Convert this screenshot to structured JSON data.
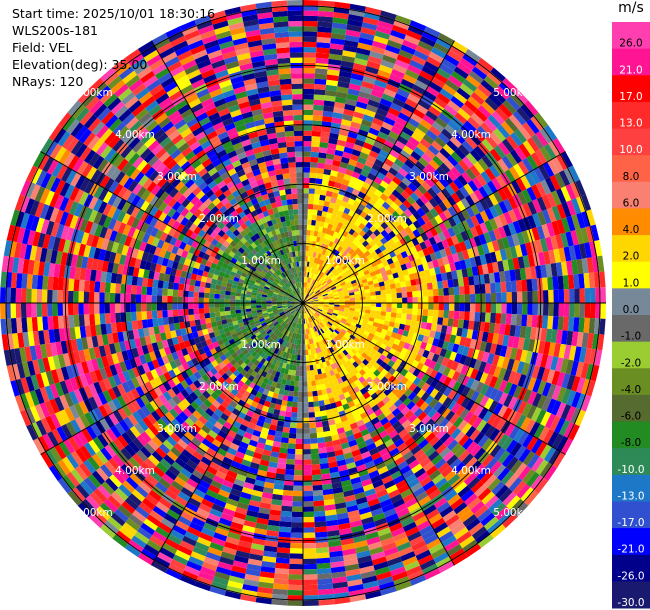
{
  "header": {
    "start_time": "Start time: 2025/10/01 18:30:16",
    "instrument": "WLS200s-181",
    "field": "Field: VEL",
    "elevation": "Elevation(deg): 35.00",
    "nrays": "NRays: 120"
  },
  "colorbar": {
    "unit": "m/s",
    "bins": [
      {
        "label": "26.0",
        "color": "#ff3fb0"
      },
      {
        "label": "21.0",
        "color": "#ff1493"
      },
      {
        "label": "17.0",
        "color": "#ff0000"
      },
      {
        "label": "13.0",
        "color": "#ff2a2a"
      },
      {
        "label": "10.0",
        "color": "#ff4040"
      },
      {
        "label": "8.0",
        "color": "#ff6347"
      },
      {
        "label": "6.0",
        "color": "#fa8072"
      },
      {
        "label": "4.0",
        "color": "#ff8c00"
      },
      {
        "label": "2.0",
        "color": "#ffd700"
      },
      {
        "label": "1.0",
        "color": "#ffff00"
      },
      {
        "label": "0.0",
        "color": "#778899"
      },
      {
        "label": "-1.0",
        "color": "#696969"
      },
      {
        "label": "-2.0",
        "color": "#9acd32"
      },
      {
        "label": "-4.0",
        "color": "#6b8e23"
      },
      {
        "label": "-6.0",
        "color": "#556b2f"
      },
      {
        "label": "-8.0",
        "color": "#228b22"
      },
      {
        "label": "-10.0",
        "color": "#2e8b57"
      },
      {
        "label": "-13.0",
        "color": "#1e78c8"
      },
      {
        "label": "-17.0",
        "color": "#3050d0"
      },
      {
        "label": "-21.0",
        "color": "#0000ff"
      },
      {
        "label": "-26.0",
        "color": "#00008b"
      },
      {
        "label": "-30.0",
        "color": "#191970"
      }
    ]
  },
  "chart_data": {
    "type": "heatmap",
    "projection": "polar-ppi",
    "field": "VEL",
    "units": "m/s",
    "n_rays": 120,
    "elevation_deg": 35.0,
    "range_rings_km": [
      1.0,
      2.0,
      3.0,
      4.0,
      5.0
    ],
    "range_labels": [
      "1.00km",
      "2.00km",
      "3.00km",
      "4.00km",
      "5.00km"
    ],
    "max_range_km": 5.1,
    "vmin": -30.0,
    "vmax": 26.0,
    "spoke_angles_deg": [
      0,
      30,
      60,
      90,
      120,
      150,
      180,
      210,
      240,
      270,
      300,
      330
    ],
    "label_bearings_deg": [
      45,
      135,
      225,
      315
    ],
    "pattern": {
      "positive_sector": "east half within ~2.2 km (yellow/gold, 1–4 m/s)",
      "negative_sector": "west half within ~1.5 km (greens, -2 to -10 m/s)",
      "noise_beyond_km": 2.4
    }
  }
}
